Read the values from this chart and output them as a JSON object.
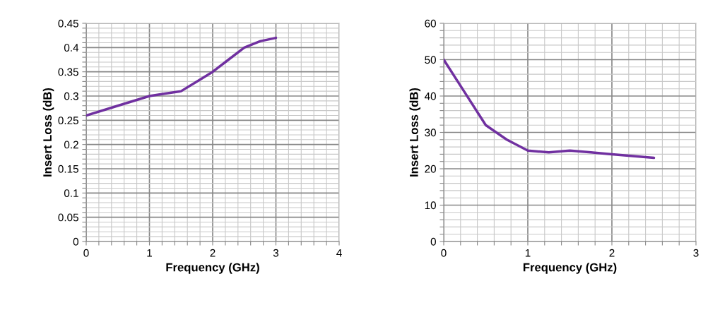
{
  "chart_data": [
    {
      "type": "line",
      "xlabel": "Frequency (GHz)",
      "ylabel": "Insert Loss (dB)",
      "grid": true,
      "line_style": "solid",
      "x": [
        0,
        0.5,
        1,
        1.25,
        1.5,
        1.75,
        2,
        2.25,
        2.5,
        2.75,
        3
      ],
      "series": [
        {
          "color": "#7030a0",
          "values": [
            0.26,
            0.28,
            0.3,
            0.305,
            0.31,
            0.33,
            0.35,
            0.375,
            0.4,
            0.413,
            0.42
          ]
        }
      ],
      "xlim": [
        0,
        4
      ],
      "xticks": [
        0,
        {
          "value": 0.2,
          "label": null
        },
        {
          "value": 0.4,
          "label": null
        },
        {
          "value": 0.6,
          "label": null
        },
        {
          "value": 0.8,
          "label": null
        },
        1,
        {
          "value": 1.2,
          "label": null
        },
        {
          "value": 1.4,
          "label": null
        },
        {
          "value": 1.6,
          "label": null
        },
        {
          "value": 1.8,
          "label": null
        },
        2,
        {
          "value": 2.2,
          "label": null
        },
        {
          "value": 2.4,
          "label": null
        },
        {
          "value": 2.6,
          "label": null
        },
        {
          "value": 2.8,
          "label": null
        },
        3,
        {
          "value": 3.2,
          "label": null
        },
        {
          "value": 3.4,
          "label": null
        },
        {
          "value": 3.6,
          "label": null
        },
        {
          "value": 3.8,
          "label": null
        },
        4
      ],
      "ylim": [
        0,
        0.45
      ],
      "yticks": [
        0,
        {
          "value": 0.01,
          "label": null
        },
        {
          "value": 0.02,
          "label": null
        },
        {
          "value": 0.03,
          "label": null
        },
        {
          "value": 0.04,
          "label": null
        },
        0.05,
        {
          "value": 0.06,
          "label": null
        },
        {
          "value": 0.07,
          "label": null
        },
        {
          "value": 0.08,
          "label": null
        },
        {
          "value": 0.09,
          "label": null
        },
        0.1,
        {
          "value": 0.11,
          "label": null
        },
        {
          "value": 0.12,
          "label": null
        },
        {
          "value": 0.13,
          "label": null
        },
        {
          "value": 0.14,
          "label": null
        },
        0.15,
        {
          "value": 0.16,
          "label": null
        },
        {
          "value": 0.17,
          "label": null
        },
        {
          "value": 0.18,
          "label": null
        },
        {
          "value": 0.19,
          "label": null
        },
        0.2,
        {
          "value": 0.21,
          "label": null
        },
        {
          "value": 0.22,
          "label": null
        },
        {
          "value": 0.23,
          "label": null
        },
        {
          "value": 0.24,
          "label": null
        },
        0.25,
        {
          "value": 0.26,
          "label": null
        },
        {
          "value": 0.27,
          "label": null
        },
        {
          "value": 0.28,
          "label": null
        },
        {
          "value": 0.29,
          "label": null
        },
        0.3,
        {
          "value": 0.31,
          "label": null
        },
        {
          "value": 0.32,
          "label": null
        },
        {
          "value": 0.33,
          "label": null
        },
        {
          "value": 0.34,
          "label": null
        },
        0.35,
        {
          "value": 0.36,
          "label": null
        },
        {
          "value": 0.37,
          "label": null
        },
        {
          "value": 0.38,
          "label": null
        },
        {
          "value": 0.39,
          "label": null
        },
        0.4,
        {
          "value": 0.41,
          "label": null
        },
        {
          "value": 0.42,
          "label": null
        },
        {
          "value": 0.43,
          "label": null
        },
        {
          "value": 0.44,
          "label": null
        },
        0.45
      ]
    },
    {
      "type": "line",
      "xlabel": "Frequency (GHz)",
      "ylabel": "Insert Loss (dB)",
      "grid": true,
      "line_style": "solid",
      "x": [
        0,
        0.25,
        0.5,
        0.75,
        1,
        1.25,
        1.5,
        1.75,
        2,
        2.25,
        2.5
      ],
      "series": [
        {
          "color": "#7030a0",
          "values": [
            50,
            41,
            32,
            28,
            25,
            24.5,
            25,
            24.5,
            24,
            23.5,
            23
          ]
        }
      ],
      "xlim": [
        0,
        3
      ],
      "xticks": [
        0,
        {
          "value": 0.2,
          "label": null
        },
        {
          "value": 0.4,
          "label": null
        },
        {
          "value": 0.6,
          "label": null
        },
        {
          "value": 0.8,
          "label": null
        },
        1,
        {
          "value": 1.2,
          "label": null
        },
        {
          "value": 1.4,
          "label": null
        },
        {
          "value": 1.6,
          "label": null
        },
        {
          "value": 1.8,
          "label": null
        },
        2,
        {
          "value": 2.2,
          "label": null
        },
        {
          "value": 2.4,
          "label": null
        },
        {
          "value": 2.6,
          "label": null
        },
        {
          "value": 2.8,
          "label": null
        },
        3
      ],
      "ylim": [
        0,
        60
      ],
      "yticks": [
        0,
        {
          "value": 2,
          "label": null
        },
        {
          "value": 4,
          "label": null
        },
        {
          "value": 6,
          "label": null
        },
        {
          "value": 8,
          "label": null
        },
        10,
        {
          "value": 12,
          "label": null
        },
        {
          "value": 14,
          "label": null
        },
        {
          "value": 16,
          "label": null
        },
        {
          "value": 18,
          "label": null
        },
        20,
        {
          "value": 22,
          "label": null
        },
        {
          "value": 24,
          "label": null
        },
        {
          "value": 26,
          "label": null
        },
        {
          "value": 28,
          "label": null
        },
        30,
        {
          "value": 32,
          "label": null
        },
        {
          "value": 34,
          "label": null
        },
        {
          "value": 36,
          "label": null
        },
        {
          "value": 38,
          "label": null
        },
        40,
        {
          "value": 42,
          "label": null
        },
        {
          "value": 44,
          "label": null
        },
        {
          "value": 46,
          "label": null
        },
        {
          "value": 48,
          "label": null
        },
        50,
        {
          "value": 52,
          "label": null
        },
        {
          "value": 54,
          "label": null
        },
        {
          "value": 56,
          "label": null
        },
        {
          "value": 58,
          "label": null
        },
        60
      ]
    }
  ]
}
